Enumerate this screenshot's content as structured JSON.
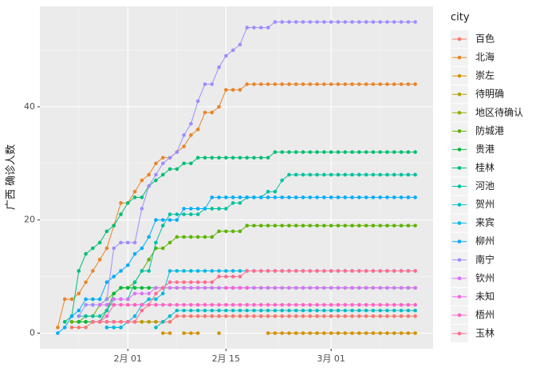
{
  "chart_data": {
    "type": "line",
    "y_label": "广西 确诊人数",
    "legend_title": "city",
    "legend_position": "right",
    "grid": true,
    "x": [
      "01-22",
      "01-23",
      "01-24",
      "01-25",
      "01-26",
      "01-27",
      "01-28",
      "01-29",
      "01-30",
      "01-31",
      "02-01",
      "02-02",
      "02-03",
      "02-04",
      "02-05",
      "02-06",
      "02-07",
      "02-08",
      "02-09",
      "02-10",
      "02-11",
      "02-12",
      "02-13",
      "02-14",
      "02-15",
      "02-16",
      "02-17",
      "02-18",
      "02-19",
      "02-20",
      "02-21",
      "02-22",
      "02-23",
      "02-24",
      "02-25",
      "02-26",
      "02-27",
      "02-28",
      "02-29",
      "03-01",
      "03-02",
      "03-03",
      "03-04",
      "03-05",
      "03-06",
      "03-07",
      "03-08",
      "03-09",
      "03-10",
      "03-11",
      "03-12",
      "03-13"
    ],
    "xticks": [
      {
        "value": "02-01",
        "label": "2月 01"
      },
      {
        "value": "02-15",
        "label": "2月 15"
      },
      {
        "value": "03-01",
        "label": "3月 01"
      }
    ],
    "ylim": [
      -2.75,
      57.75
    ],
    "yticks": [
      0,
      20,
      40
    ],
    "series": [
      {
        "name": "百色",
        "color": "#F8766D",
        "values": [
          null,
          null,
          1,
          1,
          1,
          2,
          2,
          2,
          2,
          2,
          2,
          2,
          2,
          2,
          2,
          2,
          2,
          3,
          3,
          3,
          3,
          3,
          3,
          3,
          3,
          3,
          3,
          3,
          3,
          3,
          3,
          3,
          3,
          3,
          3,
          3,
          3,
          3,
          3,
          3,
          3,
          3,
          3,
          3,
          3,
          3,
          3,
          3,
          3,
          3,
          3,
          3
        ]
      },
      {
        "name": "北海",
        "color": "#E88526",
        "values": [
          1,
          6,
          6,
          7,
          9,
          11,
          13,
          15,
          19,
          23,
          23,
          25,
          27,
          28,
          30,
          31,
          31,
          32,
          33,
          35,
          36,
          39,
          39,
          40,
          43,
          43,
          43,
          44,
          44,
          44,
          44,
          44,
          44,
          44,
          44,
          44,
          44,
          44,
          44,
          44,
          44,
          44,
          44,
          44,
          44,
          44,
          44,
          44,
          44,
          44,
          44,
          44
        ]
      },
      {
        "name": "崇左",
        "color": "#D39200",
        "values": [
          null,
          null,
          null,
          null,
          null,
          null,
          null,
          null,
          null,
          null,
          null,
          null,
          null,
          null,
          null,
          0,
          0,
          null,
          0,
          0,
          0,
          null,
          null,
          0,
          null,
          null,
          null,
          null,
          null,
          null,
          0,
          0,
          0,
          0,
          0,
          0,
          0,
          0,
          0,
          0,
          0,
          0,
          0,
          0,
          0,
          0,
          0,
          0,
          0,
          0,
          0,
          0
        ]
      },
      {
        "name": "待明确",
        "color": "#B79F00",
        "values": [
          null,
          null,
          2,
          2,
          2,
          2,
          2,
          2,
          2,
          2,
          2,
          2,
          2,
          2,
          2,
          null,
          null,
          null,
          null,
          null,
          null,
          null,
          null,
          null,
          null,
          null,
          null,
          null,
          null,
          null,
          null,
          null,
          null,
          null,
          null,
          null,
          null,
          null,
          null,
          null,
          null,
          null,
          null,
          null,
          null,
          null,
          null,
          null,
          null,
          null,
          null,
          null
        ]
      },
      {
        "name": "地区待确认",
        "color": "#93AA00",
        "values": [
          null,
          null,
          null,
          null,
          null,
          5,
          5,
          5,
          5,
          null,
          null,
          null,
          null,
          null,
          null,
          null,
          null,
          null,
          null,
          null,
          null,
          null,
          null,
          null,
          null,
          null,
          null,
          null,
          null,
          null,
          null,
          null,
          null,
          null,
          null,
          null,
          null,
          null,
          null,
          null,
          null,
          null,
          null,
          null,
          null,
          null,
          null,
          null,
          null,
          null,
          null,
          null
        ]
      },
      {
        "name": "防城港",
        "color": "#5EB300",
        "values": [
          null,
          null,
          2,
          2,
          3,
          3,
          5,
          6,
          7,
          8,
          8,
          9,
          11,
          13,
          15,
          15,
          16,
          17,
          17,
          17,
          17,
          17,
          17,
          18,
          18,
          18,
          18,
          19,
          19,
          19,
          19,
          19,
          19,
          19,
          19,
          19,
          19,
          19,
          19,
          19,
          19,
          19,
          19,
          19,
          19,
          19,
          19,
          19,
          19,
          19,
          19,
          19
        ]
      },
      {
        "name": "贵港",
        "color": "#00BA38",
        "values": [
          null,
          null,
          null,
          2,
          2,
          2,
          2,
          4,
          7,
          8,
          8,
          8,
          8,
          8,
          8,
          8,
          8,
          8,
          8,
          8,
          8,
          8,
          8,
          8,
          8,
          8,
          8,
          8,
          8,
          8,
          8,
          8,
          8,
          8,
          8,
          8,
          8,
          8,
          8,
          8,
          8,
          8,
          8,
          8,
          8,
          8,
          8,
          8,
          8,
          8,
          8,
          8
        ]
      },
      {
        "name": "桂林",
        "color": "#00BF74",
        "values": [
          null,
          2,
          3,
          11,
          14,
          15,
          16,
          18,
          19,
          21,
          23,
          24,
          24,
          26,
          27,
          28,
          29,
          29,
          30,
          30,
          31,
          31,
          31,
          31,
          31,
          31,
          31,
          31,
          31,
          31,
          31,
          32,
          32,
          32,
          32,
          32,
          32,
          32,
          32,
          32,
          32,
          32,
          32,
          32,
          32,
          32,
          32,
          32,
          32,
          32,
          32,
          32
        ]
      },
      {
        "name": "河池",
        "color": "#00C19F",
        "values": [
          null,
          null,
          null,
          3,
          3,
          3,
          3,
          4,
          6,
          6,
          6,
          9,
          11,
          11,
          16,
          19,
          21,
          21,
          21,
          21,
          21,
          22,
          22,
          22,
          22,
          23,
          23,
          24,
          24,
          24,
          25,
          25,
          27,
          28,
          28,
          28,
          28,
          28,
          28,
          28,
          28,
          28,
          28,
          28,
          28,
          28,
          28,
          28,
          28,
          28,
          28,
          28
        ]
      },
      {
        "name": "贺州",
        "color": "#00BFC4",
        "values": [
          null,
          null,
          null,
          null,
          null,
          null,
          null,
          1,
          1,
          1,
          null,
          null,
          null,
          null,
          1,
          2,
          3,
          4,
          4,
          4,
          4,
          4,
          4,
          4,
          4,
          4,
          4,
          4,
          4,
          4,
          4,
          4,
          4,
          4,
          4,
          4,
          4,
          4,
          4,
          4,
          4,
          4,
          4,
          4,
          4,
          4,
          4,
          4,
          4,
          4,
          4,
          4
        ]
      },
      {
        "name": "来宾",
        "color": "#00B9E3",
        "values": [
          null,
          null,
          null,
          null,
          null,
          null,
          null,
          1,
          1,
          1,
          2,
          3,
          5,
          6,
          6,
          7,
          11,
          11,
          11,
          11,
          11,
          11,
          11,
          11,
          11,
          11,
          11,
          11,
          11,
          11,
          11,
          11,
          11,
          11,
          11,
          11,
          11,
          11,
          11,
          11,
          11,
          11,
          11,
          11,
          11,
          11,
          11,
          11,
          11,
          11,
          11,
          11
        ]
      },
      {
        "name": "柳州",
        "color": "#00ADFA",
        "values": [
          0,
          1,
          3,
          4,
          6,
          6,
          6,
          9,
          10,
          11,
          12,
          14,
          15,
          17,
          20,
          20,
          20,
          20,
          22,
          22,
          22,
          22,
          24,
          24,
          24,
          24,
          24,
          24,
          24,
          24,
          24,
          24,
          24,
          24,
          24,
          24,
          24,
          24,
          24,
          24,
          24,
          24,
          24,
          24,
          24,
          24,
          24,
          24,
          24,
          24,
          24,
          24
        ]
      },
      {
        "name": "南宁",
        "color": "#9F8CFF",
        "values": [
          null,
          null,
          null,
          3,
          5,
          5,
          5,
          6,
          15,
          16,
          16,
          16,
          22,
          26,
          28,
          30,
          31,
          32,
          35,
          37,
          41,
          44,
          44,
          47,
          49,
          50,
          51,
          54,
          54,
          54,
          54,
          55,
          55,
          55,
          55,
          55,
          55,
          55,
          55,
          55,
          55,
          55,
          55,
          55,
          55,
          55,
          55,
          55,
          55,
          55,
          55,
          55
        ]
      },
      {
        "name": "钦州",
        "color": "#DB72FB",
        "values": [
          null,
          null,
          null,
          null,
          null,
          null,
          5,
          5,
          6,
          6,
          6,
          7,
          7,
          7,
          8,
          8,
          8,
          8,
          8,
          8,
          8,
          8,
          8,
          8,
          8,
          8,
          8,
          8,
          8,
          8,
          8,
          8,
          8,
          8,
          8,
          8,
          8,
          8,
          8,
          8,
          8,
          8,
          8,
          8,
          8,
          8,
          8,
          8,
          8,
          8,
          8,
          8
        ]
      },
      {
        "name": "未知",
        "color": "#F763E0",
        "values": [
          null,
          null,
          null,
          null,
          null,
          null,
          null,
          null,
          null,
          null,
          null,
          null,
          null,
          null,
          null,
          null,
          null,
          null,
          null,
          null,
          null,
          null,
          null,
          null,
          8,
          8,
          8,
          8,
          null,
          null,
          null,
          null,
          null,
          null,
          null,
          null,
          null,
          null,
          null,
          null,
          null,
          null,
          null,
          null,
          null,
          null,
          null,
          null,
          null,
          null,
          null,
          null
        ]
      },
      {
        "name": "梧州",
        "color": "#FF61C3",
        "values": [
          null,
          null,
          null,
          null,
          null,
          2,
          2,
          3,
          5,
          5,
          5,
          5,
          5,
          5,
          5,
          5,
          5,
          5,
          5,
          5,
          5,
          5,
          5,
          5,
          5,
          5,
          5,
          5,
          5,
          5,
          5,
          5,
          5,
          5,
          5,
          5,
          5,
          5,
          5,
          5,
          5,
          5,
          5,
          5,
          5,
          5,
          5,
          5,
          5,
          5,
          5,
          5
        ]
      },
      {
        "name": "玉林",
        "color": "#FF6C91",
        "values": [
          null,
          null,
          null,
          null,
          null,
          2,
          2,
          2,
          2,
          2,
          2,
          2,
          4,
          5,
          7,
          8,
          9,
          9,
          9,
          9,
          9,
          9,
          9,
          10,
          10,
          10,
          10,
          11,
          11,
          11,
          11,
          11,
          11,
          11,
          11,
          11,
          11,
          11,
          11,
          11,
          11,
          11,
          11,
          11,
          11,
          11,
          11,
          11,
          11,
          11,
          11,
          11
        ]
      }
    ]
  }
}
